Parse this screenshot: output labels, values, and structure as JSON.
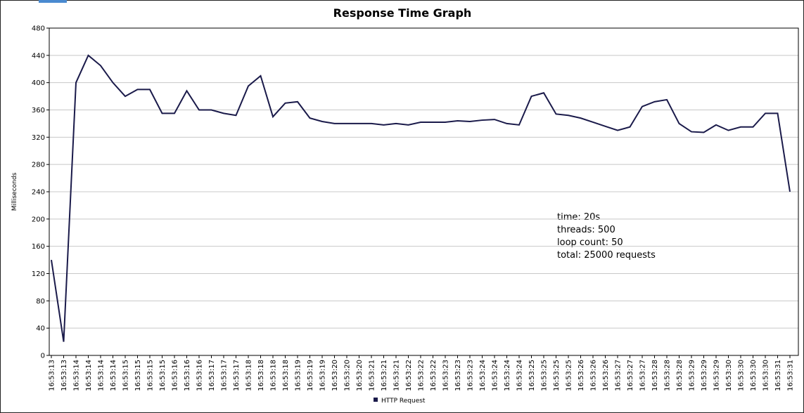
{
  "chart_data": {
    "type": "line",
    "title": "Response Time Graph",
    "y_label": "Milliseconds",
    "annotation": [
      "time: 20s",
      "threads: 500",
      "loop count: 50",
      "total: 25000 requests"
    ],
    "categories": [
      "16:53:13",
      "16:53:13",
      "16:53:14",
      "16:53:14",
      "16:53:14",
      "16:53:14",
      "16:53:15",
      "16:53:15",
      "16:53:15",
      "16:53:15",
      "16:53:16",
      "16:53:16",
      "16:53:16",
      "16:53:17",
      "16:53:17",
      "16:53:17",
      "16:53:18",
      "16:53:18",
      "16:53:18",
      "16:53:18",
      "16:53:19",
      "16:53:19",
      "16:53:19",
      "16:53:20",
      "16:53:20",
      "16:53:20",
      "16:53:21",
      "16:53:21",
      "16:53:21",
      "16:53:22",
      "16:53:22",
      "16:53:22",
      "16:53:23",
      "16:53:23",
      "16:53:23",
      "16:53:24",
      "16:53:24",
      "16:53:24",
      "16:53:24",
      "16:53:25",
      "16:53:25",
      "16:53:25",
      "16:53:25",
      "16:53:26",
      "16:53:26",
      "16:53:26",
      "16:53:27",
      "16:53:27",
      "16:53:27",
      "16:53:28",
      "16:53:28",
      "16:53:28",
      "16:53:29",
      "16:53:29",
      "16:53:29",
      "16:53:30",
      "16:53:30",
      "16:53:30",
      "16:53:30",
      "16:53:31",
      "16:53:31"
    ],
    "series": [
      {
        "name": "HTTP Request",
        "color": "#1a1a4a",
        "values": [
          140,
          20,
          400,
          440,
          425,
          400,
          380,
          390,
          390,
          355,
          355,
          388,
          360,
          360,
          355,
          352,
          395,
          410,
          350,
          370,
          372,
          348,
          343,
          340,
          340,
          340,
          340,
          338,
          340,
          338,
          342,
          342,
          342,
          344,
          343,
          345,
          346,
          340,
          338,
          380,
          385,
          354,
          352,
          348,
          342,
          336,
          330,
          335,
          365,
          372,
          375,
          340,
          328,
          327,
          338,
          330,
          335,
          335,
          355,
          355,
          240
        ]
      }
    ],
    "ylim": [
      0,
      480
    ],
    "yticks": [
      0,
      40,
      80,
      120,
      160,
      200,
      240,
      280,
      320,
      360,
      400,
      440,
      480
    ],
    "grid": true
  }
}
